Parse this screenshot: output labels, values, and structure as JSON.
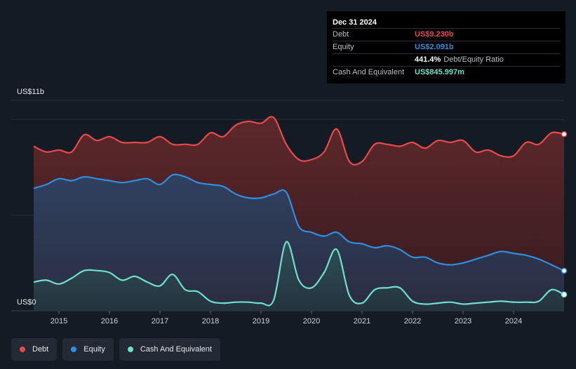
{
  "tooltip": {
    "date": "Dec 31 2024",
    "rows": [
      {
        "label": "Debt",
        "value": "US$9.230b",
        "color": "#e64a4a"
      },
      {
        "label": "Equity",
        "value": "US$2.091b",
        "color": "#2f8ee0"
      },
      {
        "label": "",
        "value": "441.4%",
        "extra": "Debt/Equity Ratio",
        "color": "#ffffff"
      },
      {
        "label": "Cash And Equivalent",
        "value": "US$845.997m",
        "color": "#6ee0cd"
      }
    ]
  },
  "legend": [
    {
      "label": "Debt",
      "color": "#e64a4a"
    },
    {
      "label": "Equity",
      "color": "#2f8ee0"
    },
    {
      "label": "Cash And Equivalent",
      "color": "#6ee0cd"
    }
  ],
  "chart_data": {
    "type": "area",
    "y_top_label": "US$11b",
    "y_bottom_label": "US$0",
    "ylim": [
      0,
      11
    ],
    "xlim": [
      2014.5,
      2025.0
    ],
    "x_ticks": [
      "2015",
      "2016",
      "2017",
      "2018",
      "2019",
      "2020",
      "2021",
      "2022",
      "2023",
      "2024"
    ],
    "x_tick_values": [
      2015,
      2016,
      2017,
      2018,
      2019,
      2020,
      2021,
      2022,
      2023,
      2024
    ],
    "grid": true,
    "series": [
      {
        "name": "Debt",
        "color": "#e64a4a",
        "x": [
          2014.5,
          2014.75,
          2015.0,
          2015.25,
          2015.5,
          2015.75,
          2016.0,
          2016.25,
          2016.5,
          2016.75,
          2017.0,
          2017.25,
          2017.5,
          2017.75,
          2018.0,
          2018.25,
          2018.5,
          2018.75,
          2019.0,
          2019.25,
          2019.5,
          2019.75,
          2020.0,
          2020.25,
          2020.5,
          2020.75,
          2021.0,
          2021.25,
          2021.5,
          2021.75,
          2022.0,
          2022.25,
          2022.5,
          2022.75,
          2023.0,
          2023.25,
          2023.5,
          2023.75,
          2024.0,
          2024.25,
          2024.5,
          2024.75,
          2025.0
        ],
        "values": [
          8.6,
          8.3,
          8.4,
          8.3,
          9.2,
          8.9,
          9.1,
          8.8,
          8.8,
          8.8,
          9.1,
          8.7,
          8.7,
          8.7,
          9.3,
          9.1,
          9.7,
          9.9,
          9.8,
          10.1,
          8.7,
          7.9,
          7.9,
          8.3,
          9.5,
          7.8,
          7.8,
          8.7,
          8.7,
          8.6,
          8.8,
          8.5,
          8.9,
          8.8,
          8.9,
          8.3,
          8.4,
          8.1,
          8.1,
          8.8,
          8.7,
          9.3,
          9.23
        ]
      },
      {
        "name": "Equity",
        "color": "#2f8ee0",
        "x": [
          2014.5,
          2014.75,
          2015.0,
          2015.25,
          2015.5,
          2015.75,
          2016.0,
          2016.25,
          2016.5,
          2016.75,
          2017.0,
          2017.25,
          2017.5,
          2017.75,
          2018.0,
          2018.25,
          2018.5,
          2018.75,
          2019.0,
          2019.25,
          2019.5,
          2019.75,
          2020.0,
          2020.25,
          2020.5,
          2020.75,
          2021.0,
          2021.25,
          2021.5,
          2021.75,
          2022.0,
          2022.25,
          2022.5,
          2022.75,
          2023.0,
          2023.25,
          2023.5,
          2023.75,
          2024.0,
          2024.25,
          2024.5,
          2024.75,
          2025.0
        ],
        "values": [
          6.4,
          6.6,
          6.9,
          6.8,
          7.0,
          6.9,
          6.8,
          6.7,
          6.8,
          6.9,
          6.6,
          7.1,
          7.0,
          6.7,
          6.6,
          6.5,
          6.1,
          5.9,
          5.9,
          6.1,
          6.2,
          4.4,
          4.1,
          3.9,
          4.1,
          3.6,
          3.5,
          3.3,
          3.4,
          3.2,
          2.8,
          2.8,
          2.5,
          2.4,
          2.5,
          2.7,
          2.9,
          3.1,
          3.0,
          2.9,
          2.7,
          2.4,
          2.091
        ]
      },
      {
        "name": "Cash And Equivalent",
        "color": "#6ee0cd",
        "x": [
          2014.5,
          2014.75,
          2015.0,
          2015.25,
          2015.5,
          2015.75,
          2016.0,
          2016.25,
          2016.5,
          2016.75,
          2017.0,
          2017.25,
          2017.5,
          2017.75,
          2018.0,
          2018.25,
          2018.5,
          2018.75,
          2019.0,
          2019.25,
          2019.5,
          2019.75,
          2020.0,
          2020.25,
          2020.5,
          2020.75,
          2021.0,
          2021.25,
          2021.5,
          2021.75,
          2022.0,
          2022.25,
          2022.5,
          2022.75,
          2023.0,
          2023.25,
          2023.5,
          2023.75,
          2024.0,
          2024.25,
          2024.5,
          2024.75,
          2025.0
        ],
        "values": [
          1.5,
          1.6,
          1.4,
          1.7,
          2.1,
          2.1,
          2.0,
          1.6,
          1.8,
          1.5,
          1.3,
          1.9,
          1.1,
          1.0,
          0.5,
          0.4,
          0.45,
          0.45,
          0.4,
          0.55,
          3.6,
          1.6,
          1.2,
          2.0,
          3.2,
          0.8,
          0.4,
          1.1,
          1.2,
          1.2,
          0.5,
          0.35,
          0.4,
          0.45,
          0.35,
          0.4,
          0.45,
          0.5,
          0.45,
          0.45,
          0.5,
          1.1,
          0.846
        ]
      }
    ]
  }
}
